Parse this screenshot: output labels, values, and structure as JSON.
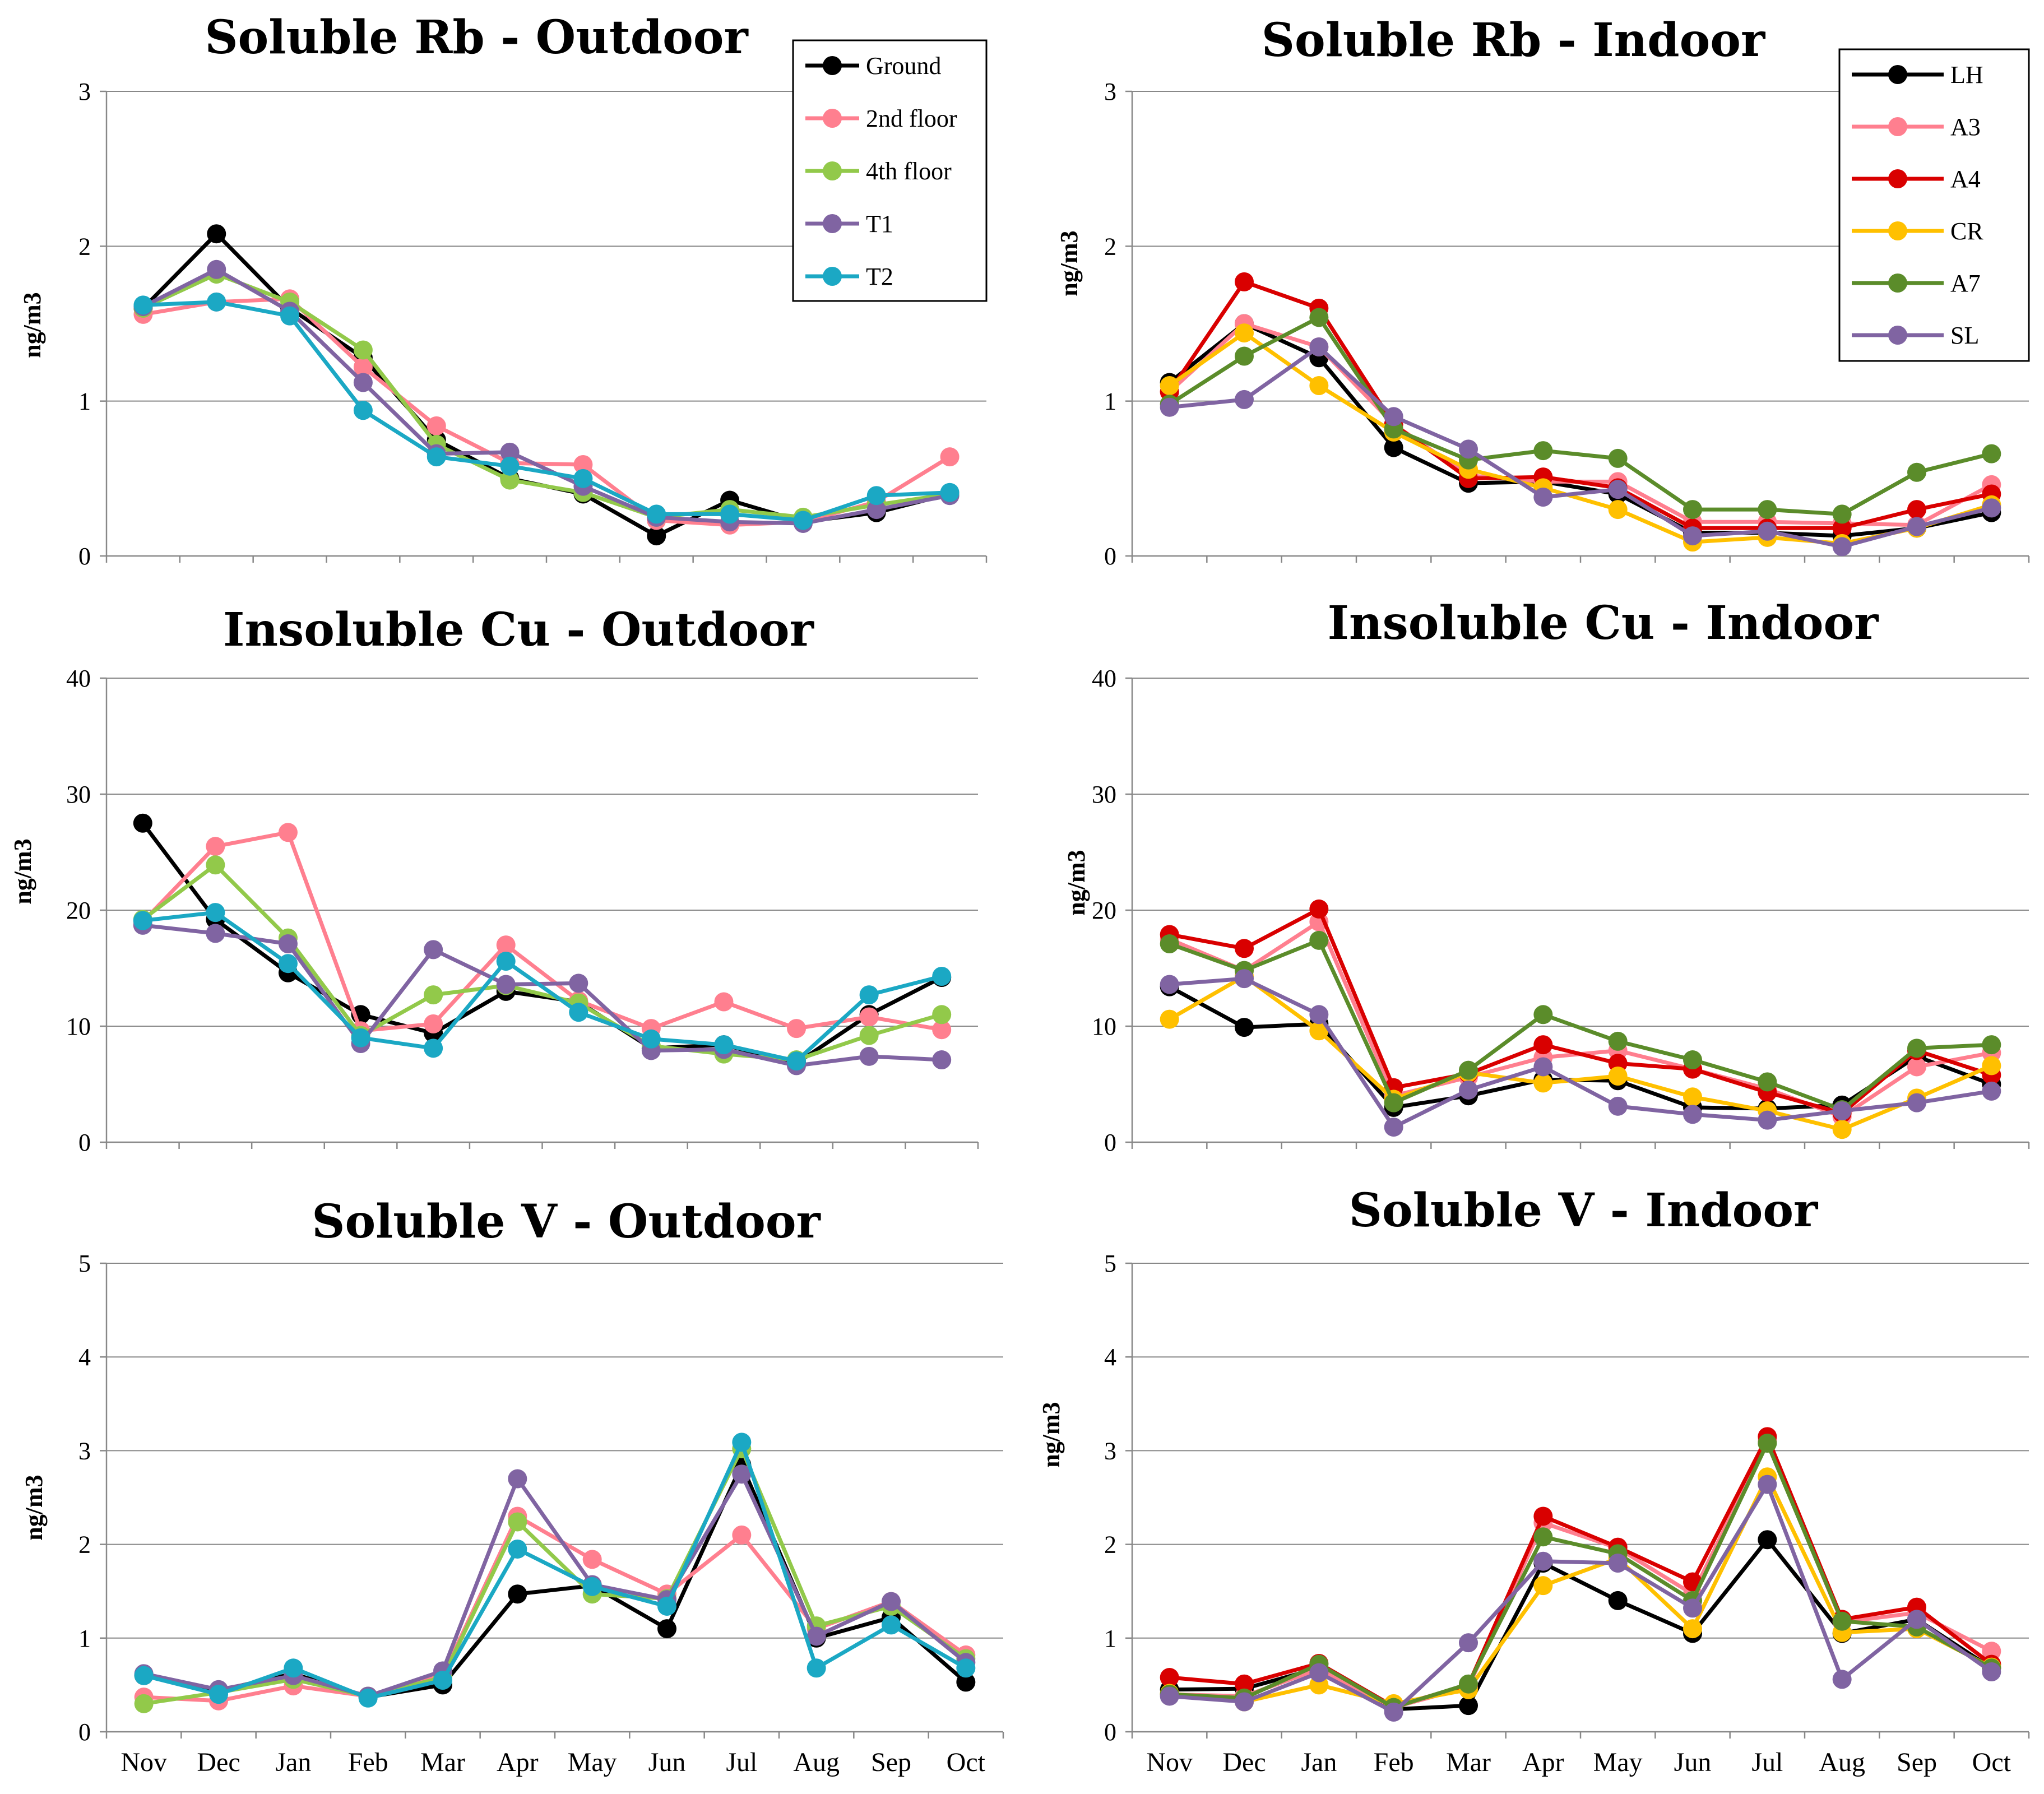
{
  "chart_data": [
    {
      "type": "line",
      "title": "Soluble Rb - Outdoor",
      "ylabel": "ng/m3",
      "ylim": [
        0,
        3
      ],
      "yticks": [
        0,
        1,
        2,
        3
      ],
      "categories": [
        "Nov",
        "Dec",
        "Jan",
        "Feb",
        "Mar",
        "Apr",
        "May",
        "Jun",
        "Jul",
        "Aug",
        "Sep",
        "Oct"
      ],
      "show_xticks": false,
      "legend": "top-right",
      "series": [
        {
          "name": "Ground",
          "color": "#000000",
          "values": [
            1.6,
            2.08,
            1.6,
            1.28,
            0.75,
            0.5,
            0.4,
            0.13,
            0.36,
            0.22,
            0.28,
            0.4
          ]
        },
        {
          "name": "2nd floor",
          "color": "#FF7F8F",
          "values": [
            1.56,
            1.64,
            1.66,
            1.22,
            0.84,
            0.6,
            0.59,
            0.23,
            0.2,
            0.22,
            0.35,
            0.64
          ]
        },
        {
          "name": "4th floor",
          "color": "#92C94A",
          "values": [
            1.6,
            1.82,
            1.64,
            1.33,
            0.72,
            0.49,
            0.41,
            0.25,
            0.3,
            0.25,
            0.33,
            0.4
          ]
        },
        {
          "name": "T1",
          "color": "#8064A2",
          "values": [
            1.61,
            1.85,
            1.58,
            1.12,
            0.66,
            0.67,
            0.45,
            0.25,
            0.22,
            0.21,
            0.3,
            0.39
          ]
        },
        {
          "name": "T2",
          "color": "#1BA8C4",
          "values": [
            1.62,
            1.64,
            1.55,
            0.94,
            0.64,
            0.58,
            0.5,
            0.27,
            0.27,
            0.23,
            0.39,
            0.41
          ]
        }
      ]
    },
    {
      "type": "line",
      "title": "Soluble Rb - Indoor",
      "ylabel": "ng/m3",
      "ylim": [
        0,
        3
      ],
      "yticks": [
        0,
        1,
        2,
        3
      ],
      "categories": [
        "Nov",
        "Dec",
        "Jan",
        "Feb",
        "Mar",
        "Apr",
        "May",
        "Jun",
        "Jul",
        "Aug",
        "Sep",
        "Oct"
      ],
      "show_xticks": false,
      "legend": "top-right",
      "series": [
        {
          "name": "LH",
          "color": "#000000",
          "values": [
            1.12,
            1.5,
            1.28,
            0.7,
            0.47,
            0.48,
            0.4,
            0.15,
            0.15,
            0.13,
            0.18,
            0.28
          ]
        },
        {
          "name": "A3",
          "color": "#FF7F8F",
          "values": [
            1.06,
            1.5,
            1.35,
            0.85,
            0.52,
            0.48,
            0.48,
            0.22,
            0.22,
            0.21,
            0.2,
            0.46
          ]
        },
        {
          "name": "A4",
          "color": "#D90000",
          "values": [
            1.06,
            1.77,
            1.6,
            0.85,
            0.5,
            0.51,
            0.44,
            0.18,
            0.18,
            0.18,
            0.3,
            0.4
          ]
        },
        {
          "name": "CR",
          "color": "#FFC000",
          "values": [
            1.1,
            1.44,
            1.1,
            0.8,
            0.56,
            0.44,
            0.3,
            0.09,
            0.12,
            0.08,
            0.18,
            0.33
          ]
        },
        {
          "name": "A7",
          "color": "#5B8C2A",
          "values": [
            0.98,
            1.29,
            1.54,
            0.82,
            0.62,
            0.68,
            0.63,
            0.3,
            0.3,
            0.27,
            0.54,
            0.66
          ]
        },
        {
          "name": "SL",
          "color": "#8064A2",
          "values": [
            0.96,
            1.01,
            1.35,
            0.9,
            0.69,
            0.38,
            0.43,
            0.13,
            0.16,
            0.06,
            0.19,
            0.31
          ]
        }
      ]
    },
    {
      "type": "line",
      "title": "Insoluble Cu - Outdoor",
      "ylabel": "ng/m3",
      "ylim": [
        0,
        40
      ],
      "yticks": [
        0,
        10,
        20,
        30,
        40
      ],
      "categories": [
        "Nov",
        "Dec",
        "Jan",
        "Feb",
        "Mar",
        "Apr",
        "May",
        "Jun",
        "Jul",
        "Aug",
        "Sep",
        "Oct"
      ],
      "show_xticks": false,
      "series": [
        {
          "name": "Ground",
          "color": "#000000",
          "values": [
            27.5,
            19.2,
            14.6,
            11.0,
            9.4,
            13.0,
            12.1,
            8.1,
            8.4,
            6.8,
            11.0,
            14.2
          ]
        },
        {
          "name": "2nd floor",
          "color": "#FF7F8F",
          "values": [
            19.0,
            25.5,
            26.7,
            9.6,
            10.2,
            17.0,
            12.2,
            9.8,
            12.1,
            9.8,
            10.8,
            9.7
          ]
        },
        {
          "name": "4th floor",
          "color": "#92C94A",
          "values": [
            19.2,
            23.9,
            17.6,
            9.2,
            12.7,
            13.5,
            12.0,
            8.3,
            7.6,
            7.1,
            9.2,
            11.0
          ]
        },
        {
          "name": "T1",
          "color": "#8064A2",
          "values": [
            18.7,
            18.0,
            17.1,
            8.5,
            16.6,
            13.6,
            13.7,
            7.9,
            8.0,
            6.6,
            7.4,
            7.1
          ]
        },
        {
          "name": "T2",
          "color": "#1BA8C4",
          "values": [
            19.1,
            19.8,
            15.4,
            9.0,
            8.1,
            15.6,
            11.2,
            8.9,
            8.4,
            7.0,
            12.7,
            14.3
          ]
        }
      ]
    },
    {
      "type": "line",
      "title": "Insoluble Cu - Indoor",
      "ylabel": "ng/m3",
      "ylim": [
        0,
        40
      ],
      "yticks": [
        0,
        10,
        20,
        30,
        40
      ],
      "categories": [
        "Nov",
        "Dec",
        "Jan",
        "Feb",
        "Mar",
        "Apr",
        "May",
        "Jun",
        "Jul",
        "Aug",
        "Sep",
        "Oct"
      ],
      "show_xticks": false,
      "series": [
        {
          "name": "LH",
          "color": "#000000",
          "values": [
            13.4,
            9.9,
            10.2,
            3.0,
            4.0,
            5.4,
            5.3,
            3.0,
            2.9,
            3.2,
            7.4,
            5.0
          ]
        },
        {
          "name": "A3",
          "color": "#FF7F8F",
          "values": [
            17.5,
            14.8,
            19.0,
            4.0,
            5.6,
            7.3,
            7.9,
            6.3,
            4.6,
            2.2,
            6.5,
            7.7
          ]
        },
        {
          "name": "A4",
          "color": "#D90000",
          "values": [
            17.9,
            16.7,
            20.1,
            4.7,
            5.9,
            8.4,
            6.8,
            6.3,
            4.3,
            2.5,
            7.9,
            5.8
          ]
        },
        {
          "name": "CR",
          "color": "#FFC000",
          "values": [
            10.6,
            14.3,
            9.6,
            3.7,
            6.0,
            5.1,
            5.7,
            3.9,
            2.7,
            1.1,
            3.8,
            6.6
          ]
        },
        {
          "name": "A7",
          "color": "#5B8C2A",
          "values": [
            17.1,
            14.8,
            17.4,
            3.4,
            6.2,
            11.0,
            8.7,
            7.1,
            5.2,
            2.8,
            8.1,
            8.4
          ]
        },
        {
          "name": "SL",
          "color": "#8064A2",
          "values": [
            13.6,
            14.1,
            11.0,
            1.3,
            4.5,
            6.5,
            3.1,
            2.4,
            1.9,
            2.7,
            3.4,
            4.4
          ]
        }
      ]
    },
    {
      "type": "line",
      "title": "Soluble V - Outdoor",
      "ylabel": "ng/m3",
      "ylim": [
        0,
        5
      ],
      "yticks": [
        0,
        1,
        2,
        3,
        4,
        5
      ],
      "categories": [
        "Nov",
        "Dec",
        "Jan",
        "Feb",
        "Mar",
        "Apr",
        "May",
        "Jun",
        "Jul",
        "Aug",
        "Sep",
        "Oct"
      ],
      "show_xticks": true,
      "series": [
        {
          "name": "Ground",
          "color": "#000000",
          "values": [
            0.6,
            0.44,
            0.62,
            0.37,
            0.5,
            1.47,
            1.56,
            1.1,
            2.85,
            1.0,
            1.22,
            0.53
          ]
        },
        {
          "name": "2nd floor",
          "color": "#FF7F8F",
          "values": [
            0.37,
            0.33,
            0.49,
            0.38,
            0.6,
            2.3,
            1.84,
            1.47,
            2.1,
            1.1,
            1.39,
            0.82
          ]
        },
        {
          "name": "4th floor",
          "color": "#92C94A",
          "values": [
            0.3,
            0.42,
            0.56,
            0.38,
            0.58,
            2.24,
            1.47,
            1.42,
            3.02,
            1.13,
            1.34,
            0.78
          ]
        },
        {
          "name": "T1",
          "color": "#8064A2",
          "values": [
            0.62,
            0.45,
            0.6,
            0.38,
            0.65,
            2.7,
            1.57,
            1.41,
            2.75,
            1.02,
            1.39,
            0.74
          ]
        },
        {
          "name": "T2",
          "color": "#1BA8C4",
          "values": [
            0.6,
            0.4,
            0.68,
            0.36,
            0.55,
            1.95,
            1.55,
            1.34,
            3.09,
            0.68,
            1.14,
            0.68
          ]
        }
      ]
    },
    {
      "type": "line",
      "title": "Soluble V - Indoor",
      "ylabel": "ng/m3",
      "ylim": [
        0,
        5
      ],
      "yticks": [
        0,
        1,
        2,
        3,
        4,
        5
      ],
      "categories": [
        "Nov",
        "Dec",
        "Jan",
        "Feb",
        "Mar",
        "Apr",
        "May",
        "Jun",
        "Jul",
        "Aug",
        "Sep",
        "Oct"
      ],
      "show_xticks": true,
      "series": [
        {
          "name": "LH",
          "color": "#000000",
          "values": [
            0.45,
            0.46,
            0.68,
            0.24,
            0.28,
            1.8,
            1.4,
            1.05,
            2.05,
            1.05,
            1.2,
            0.68
          ]
        },
        {
          "name": "A3",
          "color": "#FF7F8F",
          "values": [
            0.4,
            0.38,
            0.67,
            0.26,
            0.48,
            2.23,
            1.96,
            1.47,
            3.1,
            1.17,
            1.27,
            0.86
          ]
        },
        {
          "name": "A4",
          "color": "#D90000",
          "values": [
            0.58,
            0.51,
            0.73,
            0.27,
            0.5,
            2.3,
            1.97,
            1.6,
            3.15,
            1.2,
            1.33,
            0.72
          ]
        },
        {
          "name": "CR",
          "color": "#FFC000",
          "values": [
            0.41,
            0.32,
            0.5,
            0.3,
            0.45,
            1.56,
            1.85,
            1.1,
            2.72,
            1.06,
            1.1,
            0.69
          ]
        },
        {
          "name": "A7",
          "color": "#5B8C2A",
          "values": [
            0.4,
            0.36,
            0.72,
            0.26,
            0.51,
            2.08,
            1.9,
            1.4,
            3.08,
            1.18,
            1.12,
            0.68
          ]
        },
        {
          "name": "SL",
          "color": "#8064A2",
          "values": [
            0.38,
            0.32,
            0.63,
            0.21,
            0.95,
            1.82,
            1.8,
            1.32,
            2.64,
            0.56,
            1.2,
            0.64
          ]
        }
      ]
    }
  ]
}
